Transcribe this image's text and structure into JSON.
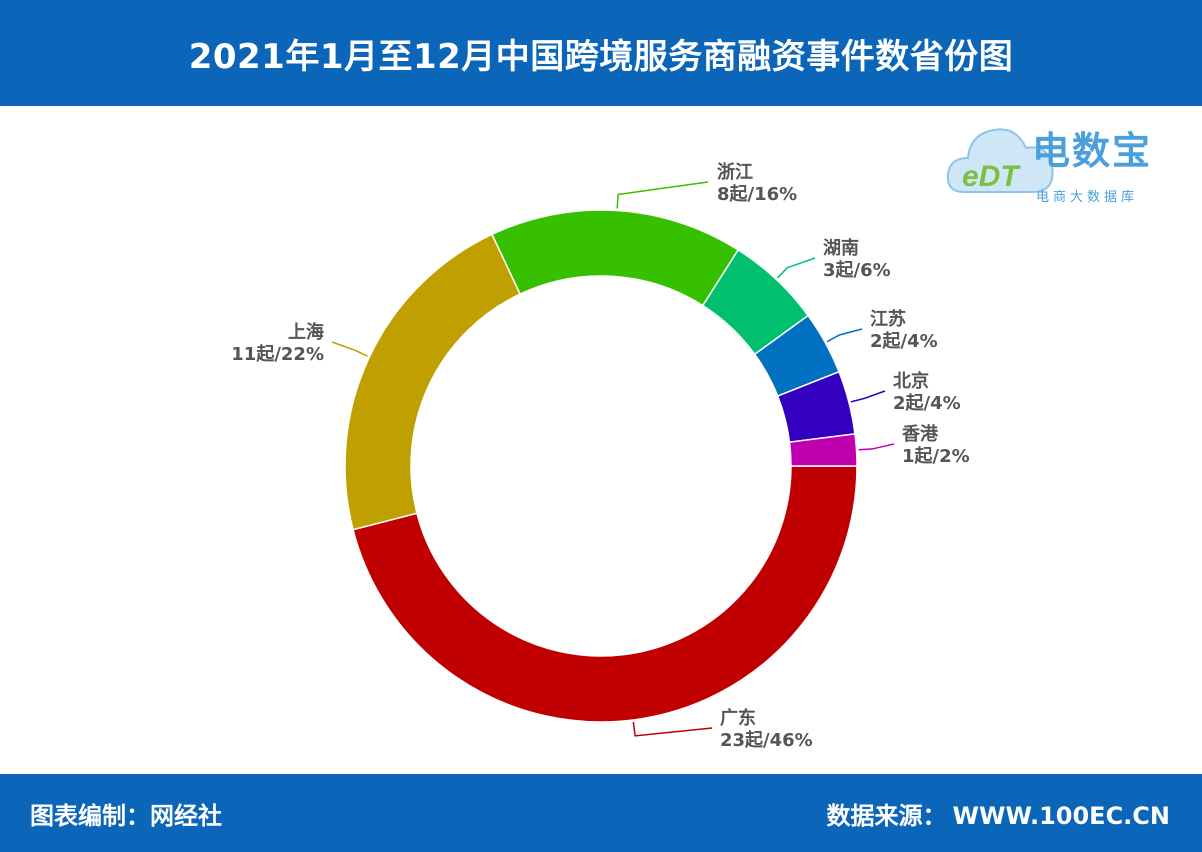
{
  "header": {
    "title": "2021年1月至12月中国跨境服务商融资事件数省份图"
  },
  "logo": {
    "mark": "eDT",
    "title": "电数宝",
    "subtitle": "电商大数据库"
  },
  "footer": {
    "left": "图表编制：网经社",
    "source_label": "数据来源：",
    "source_value": "WWW.100EC.CN"
  },
  "chart_data": {
    "type": "pie",
    "donut": true,
    "total_unit": "起",
    "slices": [
      {
        "name": "广东",
        "value": 23,
        "count_label": "23起",
        "percent_label": "46%",
        "color": "#c00000"
      },
      {
        "name": "上海",
        "value": 11,
        "count_label": "11起",
        "percent_label": "22%",
        "color": "#bfa000"
      },
      {
        "name": "浙江",
        "value": 8,
        "count_label": "8起",
        "percent_label": "16%",
        "color": "#37c000"
      },
      {
        "name": "湖南",
        "value": 3,
        "count_label": "3起",
        "percent_label": "6%",
        "color": "#00c070"
      },
      {
        "name": "江苏",
        "value": 2,
        "count_label": "2起",
        "percent_label": "4%",
        "color": "#0070c0"
      },
      {
        "name": "北京",
        "value": 2,
        "count_label": "2起",
        "percent_label": "4%",
        "color": "#3300c0"
      },
      {
        "name": "香港",
        "value": 1,
        "count_label": "1起",
        "percent_label": "2%",
        "color": "#c000b0"
      }
    ]
  }
}
